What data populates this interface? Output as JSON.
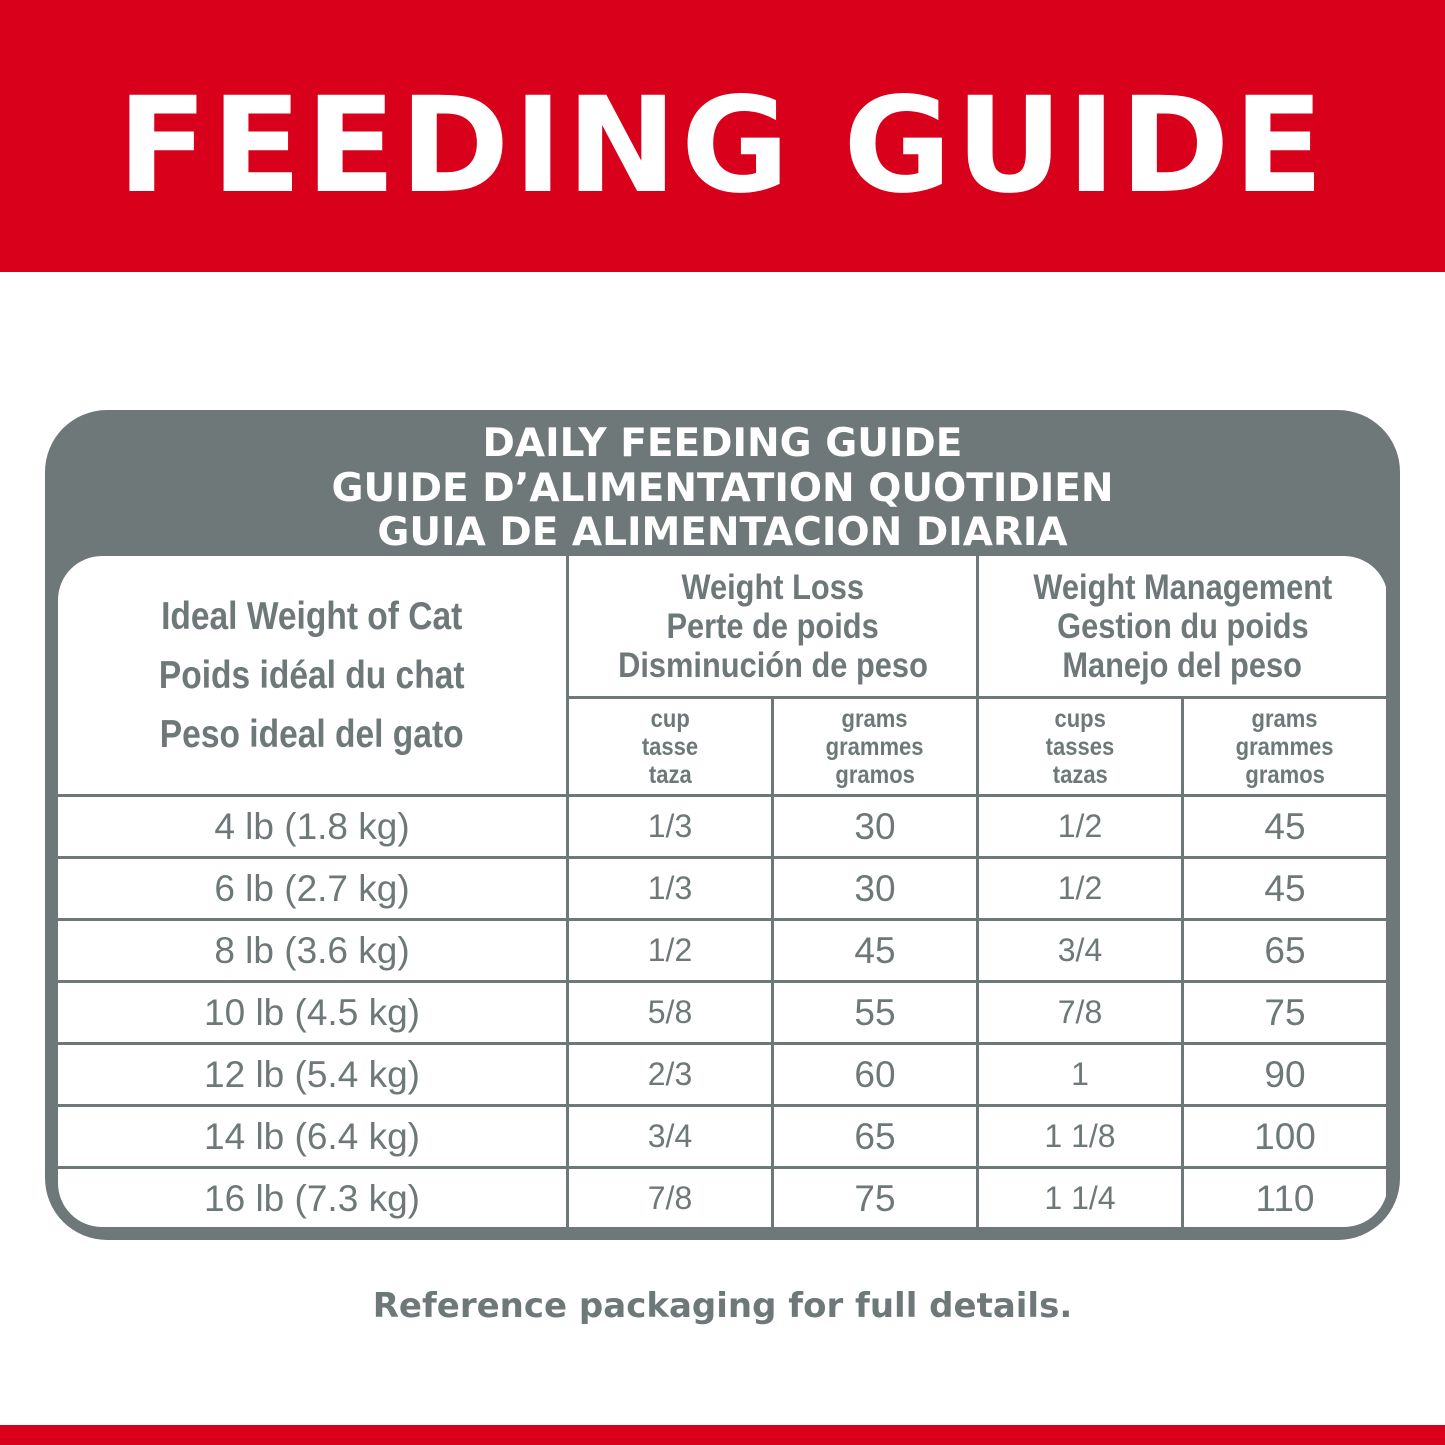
{
  "banner": {
    "title": "FEEDING GUIDE"
  },
  "card": {
    "title_lines": [
      "DAILY FEEDING GUIDE",
      "GUIDE D’ALIMENTATION QUOTIDIEN",
      "GUIA DE ALIMENTACION DIARIA"
    ],
    "header": {
      "weight": [
        "Ideal Weight of Cat",
        "Poids idéal du chat",
        "Peso ideal del gato"
      ],
      "weight_loss": [
        "Weight Loss",
        "Perte de poids",
        "Disminución de peso"
      ],
      "weight_management": [
        "Weight Management",
        "Gestion du poids",
        "Manejo del peso"
      ],
      "units": [
        [
          "cup",
          "tasse",
          "taza"
        ],
        [
          "grams",
          "grammes",
          "gramos"
        ],
        [
          "cups",
          "tasses",
          "tazas"
        ],
        [
          "grams",
          "grammes",
          "gramos"
        ]
      ]
    },
    "rows": [
      [
        "4 lb (1.8 kg)",
        "1/3",
        "30",
        "1/2",
        "45"
      ],
      [
        "6 lb (2.7 kg)",
        "1/3",
        "30",
        "1/2",
        "45"
      ],
      [
        "8 lb (3.6 kg)",
        "1/2",
        "45",
        "3/4",
        "65"
      ],
      [
        "10 lb (4.5 kg)",
        "5/8",
        "55",
        "7/8",
        "75"
      ],
      [
        "12 lb (5.4 kg)",
        "2/3",
        "60",
        "1",
        "90"
      ],
      [
        "14 lb (6.4 kg)",
        "3/4",
        "65",
        "1 1/8",
        "100"
      ],
      [
        "16 lb (7.3 kg)",
        "7/8",
        "75",
        "1 1/4",
        "110"
      ]
    ]
  },
  "footer": {
    "note": "Reference packaging for full details."
  },
  "colors": {
    "brand_red": "#d9001b",
    "table_gray": "#6e7878"
  }
}
